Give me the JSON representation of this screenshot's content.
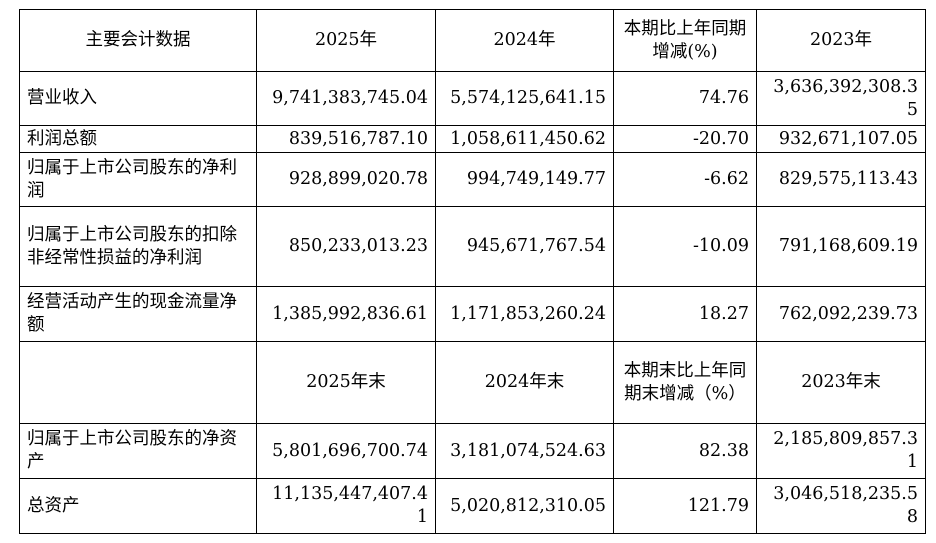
{
  "header": {
    "col_item": "主要会计数据",
    "col_2025": "2025年",
    "col_2024": "2024年",
    "col_change": "本期比上年同期增减(%)",
    "col_2023": "2023年"
  },
  "rows": [
    {
      "label": "营业收入",
      "v2025": "9,741,383,745.04",
      "v2024": "5,574,125,641.15",
      "change": "74.76",
      "v2023": "3,636,392,308.35"
    },
    {
      "label": "利润总额",
      "v2025": "839,516,787.10",
      "v2024": "1,058,611,450.62",
      "change": "-20.70",
      "v2023": "932,671,107.05"
    },
    {
      "label": "归属于上市公司股东的净利润",
      "v2025": "928,899,020.78",
      "v2024": "994,749,149.77",
      "change": "-6.62",
      "v2023": "829,575,113.43"
    },
    {
      "label": "归属于上市公司股东的扣除非经常性损益的净利润",
      "v2025": "850,233,013.23",
      "v2024": "945,671,767.54",
      "change": "-10.09",
      "v2023": "791,168,609.19"
    },
    {
      "label": "经营活动产生的现金流量净额",
      "v2025": "1,385,992,836.61",
      "v2024": "1,171,853,260.24",
      "change": "18.27",
      "v2023": "762,092,239.73"
    }
  ],
  "header2": {
    "col_item": "",
    "col_2025": "2025年末",
    "col_2024": "2024年末",
    "col_change": "本期末比上年同期末增减（%）",
    "col_2023": "2023年末"
  },
  "rows2": [
    {
      "label": "归属于上市公司股东的净资产",
      "v2025": "5,801,696,700.74",
      "v2024": "3,181,074,524.63",
      "change": "82.38",
      "v2023": "2,185,809,857.31"
    },
    {
      "label": "总资产",
      "v2025": "11,135,447,407.41",
      "v2024": "5,020,812,310.05",
      "change": "121.79",
      "v2023": "3,046,518,235.58"
    }
  ]
}
